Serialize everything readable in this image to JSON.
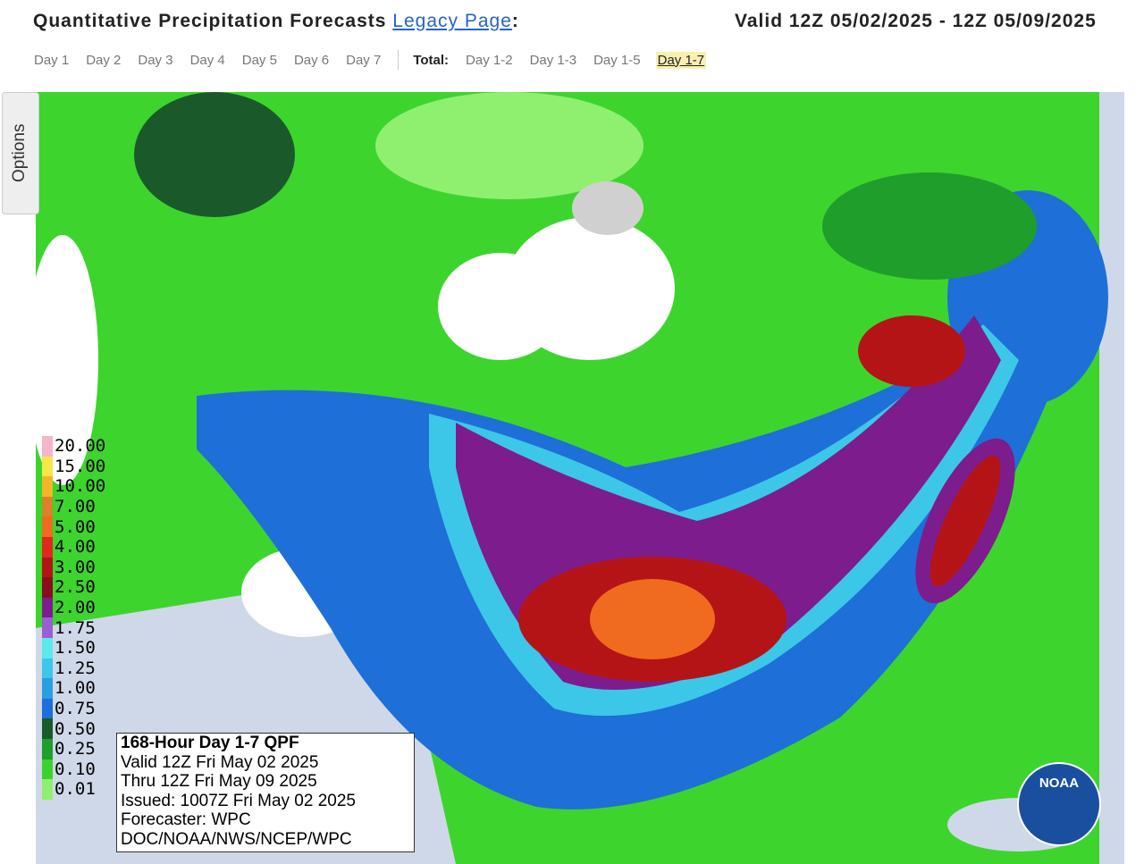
{
  "header": {
    "title": "Quantitative Precipitation Forecasts",
    "link": "Legacy Page",
    "colon": ":",
    "valid": "Valid 12Z 05/02/2025 - 12Z 05/09/2025"
  },
  "tabs": {
    "days": [
      "Day 1",
      "Day 2",
      "Day 3",
      "Day 4",
      "Day 5",
      "Day 6",
      "Day 7"
    ],
    "total_label": "Total:",
    "totals": [
      "Day 1-2",
      "Day 1-3",
      "Day 1-5",
      "Day 1-7"
    ],
    "selected_total": 3
  },
  "options": {
    "label": "Options"
  },
  "legend": {
    "items": [
      {
        "label": "20.00",
        "color": "#f4b6c8"
      },
      {
        "label": "15.00",
        "color": "#f7e64a"
      },
      {
        "label": "10.00",
        "color": "#f2b627"
      },
      {
        "label": "7.00",
        "color": "#d9822b"
      },
      {
        "label": "5.00",
        "color": "#f06b1f"
      },
      {
        "label": "4.00",
        "color": "#e0281d"
      },
      {
        "label": "3.00",
        "color": "#b51416"
      },
      {
        "label": "2.50",
        "color": "#8a0c1e"
      },
      {
        "label": "2.00",
        "color": "#7d1c8c"
      },
      {
        "label": "1.75",
        "color": "#9a5fd0"
      },
      {
        "label": "1.50",
        "color": "#5ee8ea"
      },
      {
        "label": "1.25",
        "color": "#3cc7e8"
      },
      {
        "label": "1.00",
        "color": "#2a9fe0"
      },
      {
        "label": "0.75",
        "color": "#1e6fd8"
      },
      {
        "label": "0.50",
        "color": "#1a5a2a"
      },
      {
        "label": "0.25",
        "color": "#1f9e2c"
      },
      {
        "label": "0.10",
        "color": "#3cd22e"
      },
      {
        "label": "0.01",
        "color": "#8ff070"
      }
    ]
  },
  "info": {
    "lines": [
      "168-Hour Day 1-7 QPF",
      "Valid 12Z Fri May 02 2025",
      "Thru 12Z Fri May 09 2025",
      "Issued: 1007Z Fri May 02 2025",
      "Forecaster: WPC",
      "DOC/NOAA/NWS/NCEP/WPC"
    ]
  },
  "logo": {
    "text": "NOAA"
  }
}
